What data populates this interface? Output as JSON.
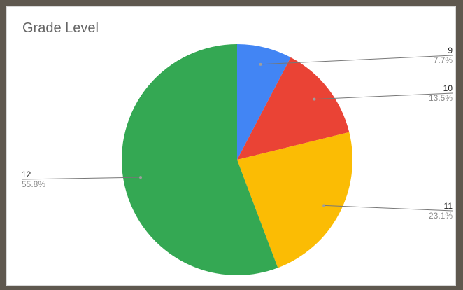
{
  "chart_data": {
    "type": "pie",
    "title": "Grade Level",
    "slices": [
      {
        "label": "9",
        "percent_label": "7.7%",
        "value": 7.7,
        "color": "#4285f4"
      },
      {
        "label": "10",
        "percent_label": "13.5%",
        "value": 13.5,
        "color": "#ea4335"
      },
      {
        "label": "11",
        "percent_label": "23.1%",
        "value": 23.1,
        "color": "#fbbc04"
      },
      {
        "label": "12",
        "percent_label": "55.8%",
        "value": 55.8,
        "color": "#34a853"
      }
    ],
    "start_angle_deg": 0,
    "direction": "clockwise",
    "legend": "none",
    "label_style": "outside-with-leader-lines"
  }
}
